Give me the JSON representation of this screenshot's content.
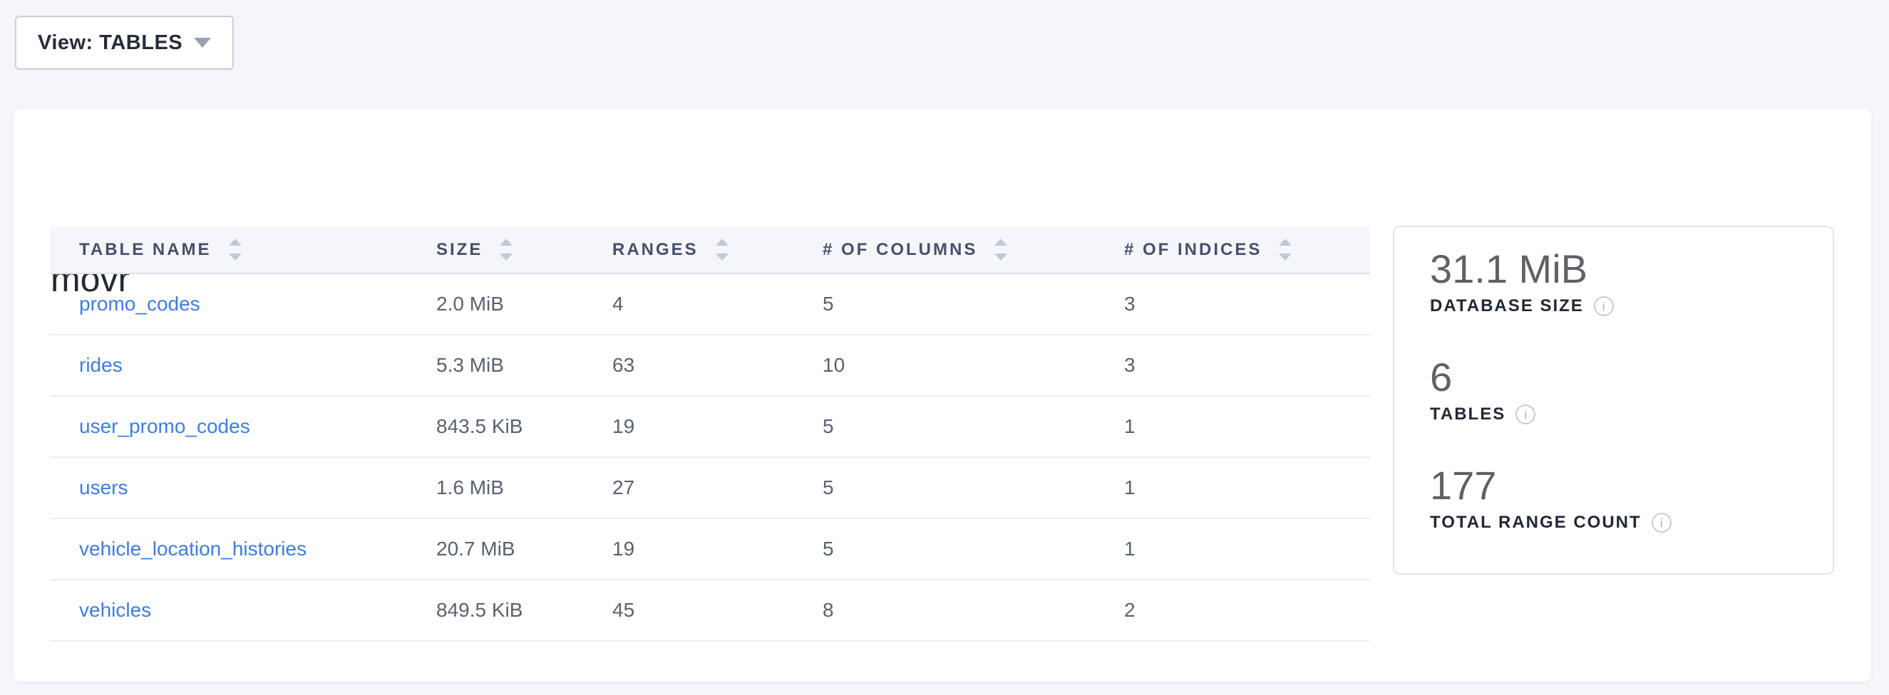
{
  "view_selector": {
    "label": "View: TABLES"
  },
  "database": {
    "title": "movr"
  },
  "table": {
    "columns": [
      {
        "key": "name",
        "label": "TABLE NAME"
      },
      {
        "key": "size",
        "label": "SIZE"
      },
      {
        "key": "ranges",
        "label": "RANGES"
      },
      {
        "key": "columns",
        "label": "# OF COLUMNS"
      },
      {
        "key": "indices",
        "label": "# OF INDICES"
      }
    ],
    "rows": [
      {
        "name": "promo_codes",
        "size": "2.0 MiB",
        "ranges": "4",
        "columns": "5",
        "indices": "3"
      },
      {
        "name": "rides",
        "size": "5.3 MiB",
        "ranges": "63",
        "columns": "10",
        "indices": "3"
      },
      {
        "name": "user_promo_codes",
        "size": "843.5 KiB",
        "ranges": "19",
        "columns": "5",
        "indices": "1"
      },
      {
        "name": "users",
        "size": "1.6 MiB",
        "ranges": "27",
        "columns": "5",
        "indices": "1"
      },
      {
        "name": "vehicle_location_histories",
        "size": "20.7 MiB",
        "ranges": "19",
        "columns": "5",
        "indices": "1"
      },
      {
        "name": "vehicles",
        "size": "849.5 KiB",
        "ranges": "45",
        "columns": "8",
        "indices": "2"
      }
    ]
  },
  "panel": {
    "stats": [
      {
        "value": "31.1 MiB",
        "label": "DATABASE SIZE"
      },
      {
        "value": "6",
        "label": "TABLES"
      },
      {
        "value": "177",
        "label": "TOTAL RANGE COUNT"
      }
    ]
  },
  "colors": {
    "page_background": "#f4f6fa",
    "card_background": "#ffffff",
    "link": "#3e7ce0",
    "header_text": "#46506a",
    "cell_text": "#5a6270",
    "stat_value": "#5e6267",
    "stat_label": "#222834",
    "row_border": "#e9edf3"
  }
}
